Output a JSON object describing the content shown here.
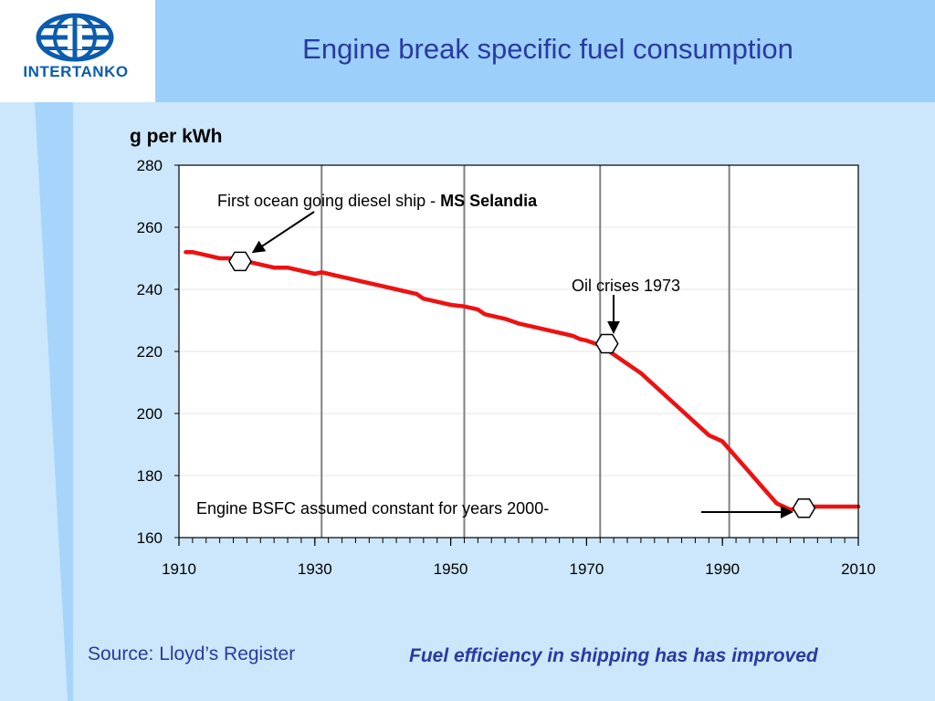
{
  "title": "Engine break specific fuel consumption",
  "logo": {
    "name": "INTERTANKO",
    "icon": "globe-icon"
  },
  "source": "Source: Lloyd’s Register",
  "footer": "Fuel efficiency  in shipping has has improved",
  "chart_data": {
    "type": "line",
    "ylabel": "g per kWh",
    "xlim": [
      1910,
      2010
    ],
    "ylim": [
      160,
      280
    ],
    "xticks": [
      1910,
      1930,
      1950,
      1970,
      1990,
      2010
    ],
    "yticks": [
      160,
      180,
      200,
      220,
      240,
      260,
      280
    ],
    "vertical_lines": [
      1931,
      1952,
      1972,
      1991
    ],
    "grid": false,
    "series": [
      {
        "name": "",
        "color": "#ee1111",
        "x": [
          1911,
          1912,
          1914,
          1916,
          1918,
          1920,
          1922,
          1924,
          1926,
          1928,
          1930,
          1931,
          1932,
          1934,
          1936,
          1938,
          1940,
          1942,
          1944,
          1945,
          1946,
          1948,
          1950,
          1952,
          1954,
          1955,
          1956,
          1958,
          1960,
          1962,
          1964,
          1966,
          1968,
          1969,
          1970,
          1972,
          1974,
          1976,
          1978,
          1980,
          1982,
          1984,
          1986,
          1988,
          1989,
          1990,
          1992,
          1994,
          1996,
          1998,
          2000,
          2002,
          2004,
          2006,
          2008,
          2010
        ],
        "y": [
          252,
          252,
          251,
          250,
          250,
          249,
          248,
          247,
          247,
          246,
          245,
          245.5,
          245,
          244,
          243,
          242,
          241,
          240,
          239,
          238.5,
          237,
          236,
          235,
          234.5,
          233.5,
          232,
          231.5,
          230.5,
          229,
          228,
          227,
          226,
          225,
          224,
          223.5,
          222,
          219,
          216,
          213,
          209,
          205,
          201,
          197,
          193,
          192,
          191,
          186,
          181,
          176,
          171,
          169,
          170,
          170,
          170,
          170,
          170
        ]
      }
    ],
    "annotations": [
      {
        "text": "First ocean going diesel ship - ",
        "bold_text": "MS Selandia",
        "x": 1919,
        "y": 249,
        "marker": "hexagon"
      },
      {
        "text": "Oil crises 1973",
        "x": 1973,
        "y": 222.5,
        "marker": "hexagon"
      },
      {
        "text": "Engine BSFC assumed constant for years 2000-",
        "x": 2002,
        "y": 169.5,
        "marker": "hexagon"
      }
    ]
  }
}
